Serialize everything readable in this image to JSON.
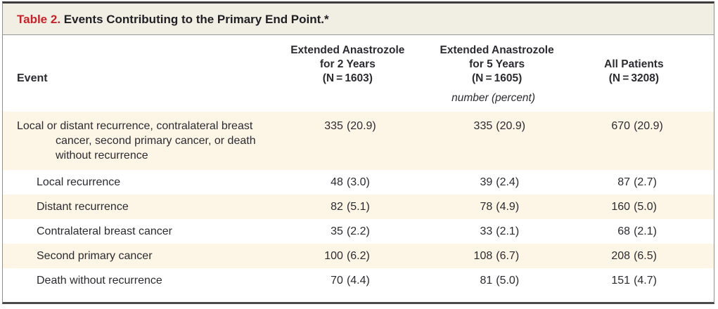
{
  "title": {
    "label": "Table 2.",
    "text": "Events Contributing to the Primary End Point.*"
  },
  "columns": {
    "event": "Event",
    "groups": [
      "Extended Anastrozole\nfor 2 Years\n(N = 1603)",
      "Extended Anastrozole\nfor 5 Years\n(N = 1605)",
      "All Patients\n(N = 3208)"
    ],
    "units": "number (percent)"
  },
  "rows": [
    {
      "event": "Local or distant recurrence, contralateral breast cancer, second primary cancer, or death without recurrence",
      "values": [
        {
          "n": "335",
          "p": "(20.9)"
        },
        {
          "n": "335",
          "p": "(20.9)"
        },
        {
          "n": "670",
          "p": "(20.9)"
        }
      ]
    },
    {
      "event": "Local recurrence",
      "values": [
        {
          "n": "48",
          "p": "(3.0)"
        },
        {
          "n": "39",
          "p": "(2.4)"
        },
        {
          "n": "87",
          "p": "(2.7)"
        }
      ]
    },
    {
      "event": "Distant recurrence",
      "values": [
        {
          "n": "82",
          "p": "(5.1)"
        },
        {
          "n": "78",
          "p": "(4.9)"
        },
        {
          "n": "160",
          "p": "(5.0)"
        }
      ]
    },
    {
      "event": "Contralateral breast cancer",
      "values": [
        {
          "n": "35",
          "p": "(2.2)"
        },
        {
          "n": "33",
          "p": "(2.1)"
        },
        {
          "n": "68",
          "p": "(2.1)"
        }
      ]
    },
    {
      "event": "Second primary cancer",
      "values": [
        {
          "n": "100",
          "p": "(6.2)"
        },
        {
          "n": "108",
          "p": "(6.7)"
        },
        {
          "n": "208",
          "p": "(6.5)"
        }
      ]
    },
    {
      "event": "Death without recurrence",
      "values": [
        {
          "n": "70",
          "p": "(4.4)"
        },
        {
          "n": "81",
          "p": "(5.0)"
        },
        {
          "n": "151",
          "p": "(4.7)"
        }
      ]
    }
  ],
  "colors": {
    "accent_red": "#c5232b",
    "row_shade": "#fdf5e6",
    "titlebar_bg": "#f1eee3",
    "text": "#2b2b30",
    "border_gray": "#8f8f8f",
    "border_dark": "#3c3c3c"
  }
}
